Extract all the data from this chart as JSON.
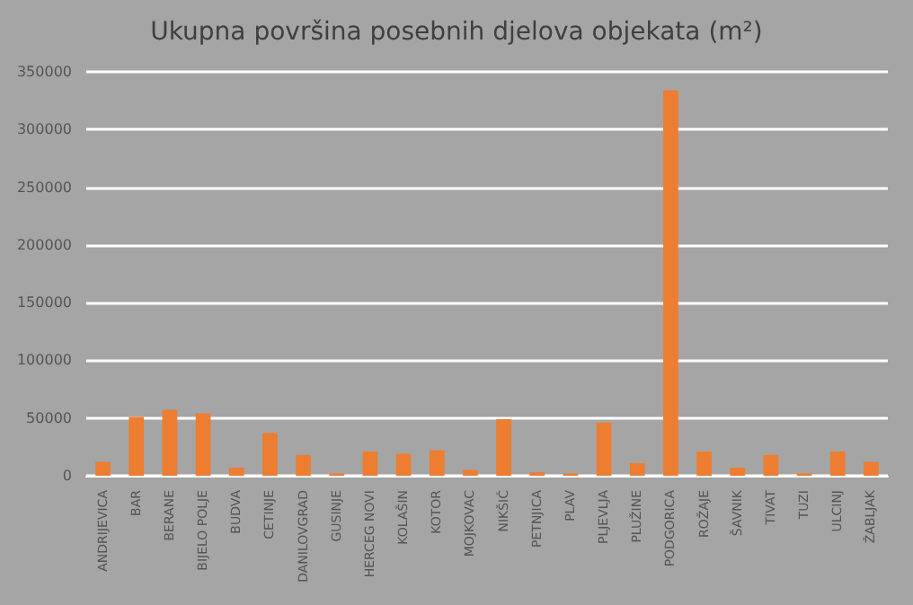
{
  "chart_data": {
    "type": "bar",
    "title": "Ukupna površina posebnih djelova objekata (m²)",
    "categories": [
      "ANDRIJEVICA",
      "BAR",
      "BERANE",
      "BIJELO POLJE",
      "BUDVA",
      "CETINJE",
      "DANILOVGRAD",
      "GUSINJE",
      "HERCEG NOVI",
      "KOLAŠIN",
      "KOTOR",
      "MOJKOVAC",
      "NIKŠIĆ",
      "PETNJICA",
      "PLAV",
      "PLJEVLJA",
      "PLUŽINE",
      "PODGORICA",
      "ROŽAJE",
      "ŠAVNIK",
      "TIVAT",
      "TUZI",
      "ULCINJ",
      "ŽABLJAK"
    ],
    "values": [
      12000,
      51000,
      57000,
      54000,
      7000,
      37000,
      18000,
      2000,
      21000,
      19000,
      22000,
      5000,
      49000,
      3000,
      2000,
      46000,
      11000,
      334000,
      21000,
      7000,
      18000,
      2000,
      21000,
      12000
    ],
    "color": "#ed7d31",
    "ylim": [
      0,
      350000
    ],
    "yticks": [
      0,
      50000,
      100000,
      150000,
      200000,
      250000,
      300000,
      350000
    ],
    "grid": "y"
  }
}
